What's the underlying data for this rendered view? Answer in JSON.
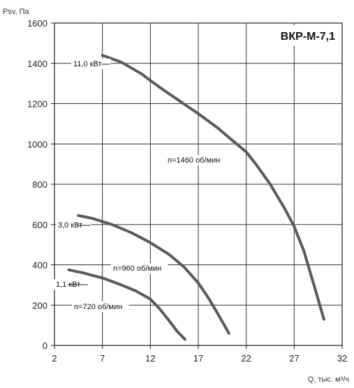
{
  "chart_data": {
    "type": "line",
    "title": "ВКР-М-7,1",
    "xlabel": "Q, тыс. м³/ч",
    "ylabel": "Psv, Па",
    "xlim": [
      2,
      32
    ],
    "ylim": [
      0,
      1600
    ],
    "x_ticks": [
      "2",
      "7",
      "12",
      "17",
      "22",
      "27",
      "32"
    ],
    "y_ticks": [
      "0",
      "200",
      "400",
      "600",
      "800",
      "1000",
      "1200",
      "1400",
      "1600"
    ],
    "grid": true,
    "series": [
      {
        "name": "n=1460 об/мин",
        "power": "11,0 кВт",
        "x": [
          7.0,
          9.0,
          11.0,
          13.0,
          15.0,
          17.0,
          19.0,
          21.0,
          22.0,
          23.0,
          24.5,
          26.0,
          27.0,
          28.0,
          29.0,
          30.1
        ],
        "y": [
          1440,
          1405,
          1350,
          1280,
          1215,
          1150,
          1080,
          1000,
          960,
          900,
          800,
          680,
          590,
          470,
          310,
          130
        ]
      },
      {
        "name": "n=960 об/мин",
        "power": "3,0 кВт",
        "x": [
          4.5,
          6.0,
          8.0,
          10.0,
          12.0,
          14.0,
          15.5,
          17.0,
          18.0,
          19.0,
          20.2
        ],
        "y": [
          645,
          630,
          600,
          560,
          510,
          450,
          390,
          310,
          240,
          160,
          60
        ]
      },
      {
        "name": "n=720 об/мин",
        "power": "1,1 кВт",
        "x": [
          3.5,
          5.0,
          7.0,
          9.0,
          10.5,
          12.0,
          13.0,
          14.0,
          14.8,
          15.6
        ],
        "y": [
          375,
          360,
          335,
          300,
          270,
          230,
          180,
          120,
          70,
          30
        ]
      }
    ],
    "annotations": {
      "curve_labels": [
        "n=1460 об/мин",
        "n=960 об/мин",
        "n=720 об/мин"
      ],
      "power_labels": [
        "11,0 кВт",
        "3,0 кВт",
        "1,1 кВт"
      ]
    }
  }
}
